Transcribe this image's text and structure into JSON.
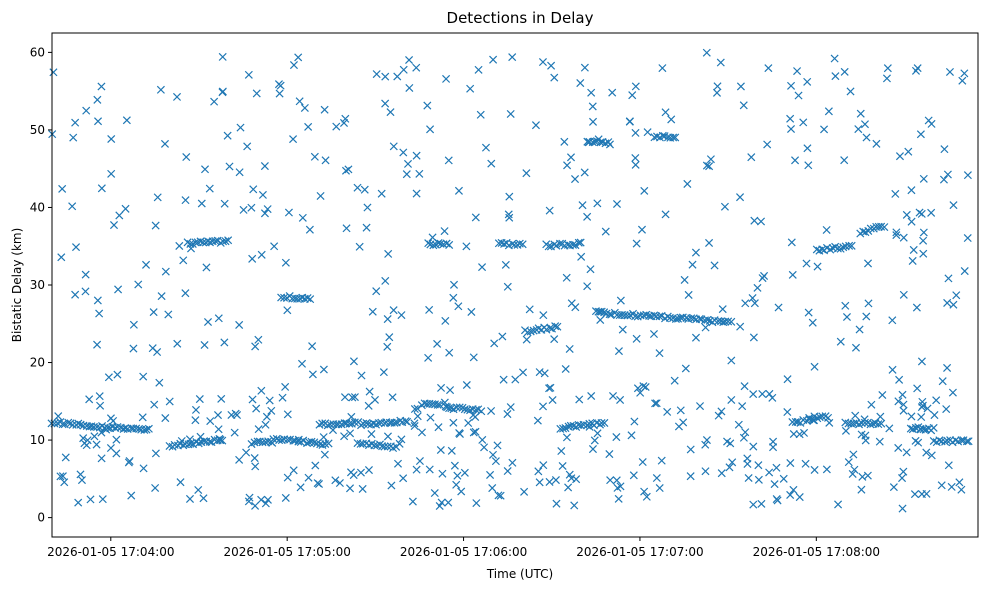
{
  "chart_data": {
    "type": "scatter",
    "title": "Detections in Delay",
    "xlabel": "Time (UTC)",
    "ylabel": "Bistatic Delay (km)",
    "x_ticks": [
      "2026-01-05 17:04:00",
      "2026-01-05 17:05:00",
      "2026-01-05 17:06:00",
      "2026-01-05 17:07:00",
      "2026-01-05 17:08:00"
    ],
    "y_ticks": [
      0,
      10,
      20,
      30,
      40,
      50,
      60
    ],
    "xlim": [
      "2026-01-05 17:03:40",
      "2026-01-05 17:08:55"
    ],
    "ylim": [
      -2.5,
      62.5
    ],
    "grid": false,
    "marker": "x",
    "color": "#1f77b4",
    "tracks": [
      {
        "x0": "2026-01-05 17:03:40",
        "x1": "2026-01-05 17:03:58",
        "y0": 12.3,
        "y1": 11.7
      },
      {
        "x0": "2026-01-05 17:03:58",
        "x1": "2026-01-05 17:04:13",
        "y0": 11.7,
        "y1": 11.3
      },
      {
        "x0": "2026-01-05 17:04:26",
        "x1": "2026-01-05 17:04:40",
        "y0": 35.4,
        "y1": 35.6
      },
      {
        "x0": "2026-01-05 17:04:20",
        "x1": "2026-01-05 17:04:38",
        "y0": 9.2,
        "y1": 10.0
      },
      {
        "x0": "2026-01-05 17:04:48",
        "x1": "2026-01-05 17:05:00",
        "y0": 9.6,
        "y1": 10.2
      },
      {
        "x0": "2026-01-05 17:05:01",
        "x1": "2026-01-05 17:05:14",
        "y0": 10.0,
        "y1": 9.4
      },
      {
        "x0": "2026-01-05 17:04:58",
        "x1": "2026-01-05 17:05:08",
        "y0": 28.5,
        "y1": 28.2
      },
      {
        "x0": "2026-01-05 17:05:11",
        "x1": "2026-01-05 17:05:24",
        "y0": 12.0,
        "y1": 12.3
      },
      {
        "x0": "2026-01-05 17:05:24",
        "x1": "2026-01-05 17:05:37",
        "y0": 9.5,
        "y1": 9.1
      },
      {
        "x0": "2026-01-05 17:05:25",
        "x1": "2026-01-05 17:05:41",
        "y0": 12.0,
        "y1": 12.4
      },
      {
        "x0": "2026-01-05 17:05:46",
        "x1": "2026-01-05 17:05:52",
        "y0": 14.6,
        "y1": 14.5
      },
      {
        "x0": "2026-01-05 17:05:54",
        "x1": "2026-01-05 17:06:06",
        "y0": 14.2,
        "y1": 13.8
      },
      {
        "x0": "2026-01-05 17:05:48",
        "x1": "2026-01-05 17:05:55",
        "y0": 35.3,
        "y1": 35.3
      },
      {
        "x0": "2026-01-05 17:06:12",
        "x1": "2026-01-05 17:06:20",
        "y0": 35.3,
        "y1": 35.2
      },
      {
        "x0": "2026-01-05 17:06:21",
        "x1": "2026-01-05 17:06:32",
        "y0": 24.0,
        "y1": 24.6
      },
      {
        "x0": "2026-01-05 17:06:28",
        "x1": "2026-01-05 17:06:40",
        "y0": 35.1,
        "y1": 35.3
      },
      {
        "x0": "2026-01-05 17:06:33",
        "x1": "2026-01-05 17:06:48",
        "y0": 11.6,
        "y1": 12.2
      },
      {
        "x0": "2026-01-05 17:06:45",
        "x1": "2026-01-05 17:07:31",
        "y0": 26.5,
        "y1": 25.2
      },
      {
        "x0": "2026-01-05 17:06:42",
        "x1": "2026-01-05 17:06:50",
        "y0": 48.5,
        "y1": 48.3
      },
      {
        "x0": "2026-01-05 17:07:05",
        "x1": "2026-01-05 17:07:12",
        "y0": 49.2,
        "y1": 49.0
      },
      {
        "x0": "2026-01-05 17:07:52",
        "x1": "2026-01-05 17:08:04",
        "y0": 12.2,
        "y1": 13.0
      },
      {
        "x0": "2026-01-05 17:08:00",
        "x1": "2026-01-05 17:08:12",
        "y0": 34.5,
        "y1": 35.0
      },
      {
        "x0": "2026-01-05 17:08:10",
        "x1": "2026-01-05 17:08:22",
        "y0": 12.3,
        "y1": 12.0
      },
      {
        "x0": "2026-01-05 17:08:15",
        "x1": "2026-01-05 17:08:23",
        "y0": 36.8,
        "y1": 37.6
      },
      {
        "x0": "2026-01-05 17:08:32",
        "x1": "2026-01-05 17:08:40",
        "y0": 11.6,
        "y1": 11.4
      },
      {
        "x0": "2026-01-05 17:08:40",
        "x1": "2026-01-05 17:08:52",
        "y0": 9.9,
        "y1": 9.8
      }
    ],
    "scatter_range": {
      "x0": "2026-01-05 17:03:40",
      "x1": "2026-01-05 17:08:52",
      "y0": 1.0,
      "y1": 60.0
    },
    "scatter_count": 700
  }
}
